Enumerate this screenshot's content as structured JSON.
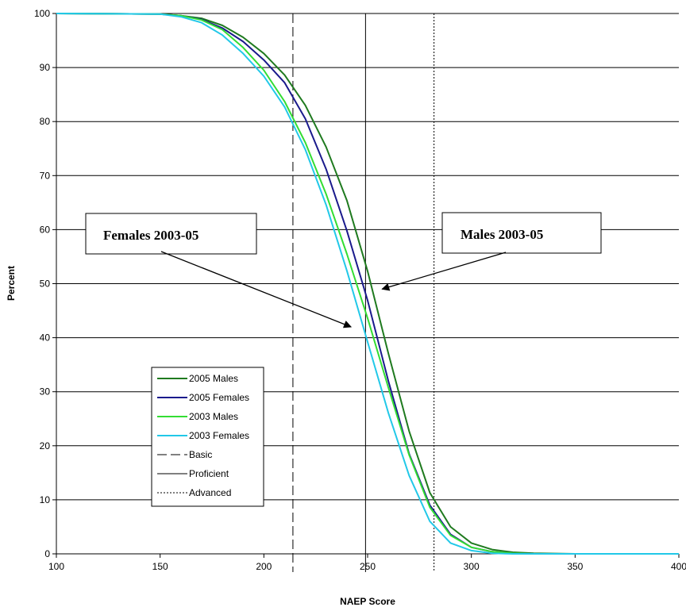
{
  "chart_data": {
    "type": "line",
    "title": "",
    "xlabel": "NAEP Score",
    "ylabel": "Percent",
    "xlim": [
      100,
      400
    ],
    "ylim": [
      0,
      100
    ],
    "x_ticks": [
      100,
      150,
      200,
      250,
      300,
      350,
      400
    ],
    "y_ticks": [
      0,
      10,
      20,
      30,
      40,
      50,
      60,
      70,
      80,
      90,
      100
    ],
    "grid": "horizontal",
    "legend_placement": "bottom-left",
    "series": [
      {
        "name": "2005 Males",
        "color": "#1f7a1f",
        "points": [
          [
            100,
            100
          ],
          [
            150,
            99.9
          ],
          [
            160,
            99.6
          ],
          [
            170,
            99.1
          ],
          [
            180,
            97.8
          ],
          [
            190,
            95.6
          ],
          [
            200,
            92.6
          ],
          [
            210,
            88.6
          ],
          [
            220,
            83
          ],
          [
            230,
            75.3
          ],
          [
            240,
            65.4
          ],
          [
            250,
            52.3
          ],
          [
            260,
            37.1
          ],
          [
            270,
            22.7
          ],
          [
            280,
            11.3
          ],
          [
            290,
            5
          ],
          [
            300,
            2
          ],
          [
            310,
            0.8
          ],
          [
            320,
            0.3
          ],
          [
            330,
            0.1
          ],
          [
            350,
            0
          ],
          [
            400,
            0
          ]
        ]
      },
      {
        "name": "2005 Females",
        "color": "#1a1a8c",
        "points": [
          [
            100,
            100
          ],
          [
            150,
            99.9
          ],
          [
            160,
            99.6
          ],
          [
            170,
            98.9
          ],
          [
            180,
            97.3
          ],
          [
            190,
            94.8
          ],
          [
            200,
            91.4
          ],
          [
            210,
            87.2
          ],
          [
            220,
            80.5
          ],
          [
            230,
            71.2
          ],
          [
            240,
            59.8
          ],
          [
            250,
            46.9
          ],
          [
            260,
            32
          ],
          [
            270,
            18.5
          ],
          [
            280,
            9
          ],
          [
            290,
            3.6
          ],
          [
            300,
            1.2
          ],
          [
            310,
            0.4
          ],
          [
            320,
            0.1
          ],
          [
            330,
            0
          ],
          [
            350,
            0
          ],
          [
            400,
            0
          ]
        ]
      },
      {
        "name": "2003 Males",
        "color": "#33dd33",
        "points": [
          [
            100,
            100
          ],
          [
            150,
            99.9
          ],
          [
            160,
            99.6
          ],
          [
            170,
            98.8
          ],
          [
            180,
            97
          ],
          [
            190,
            93.7
          ],
          [
            200,
            89.5
          ],
          [
            210,
            83.7
          ],
          [
            220,
            76.1
          ],
          [
            230,
            66.6
          ],
          [
            240,
            55.5
          ],
          [
            250,
            43.6
          ],
          [
            260,
            30.8
          ],
          [
            270,
            18.3
          ],
          [
            280,
            8.6
          ],
          [
            290,
            3.4
          ],
          [
            300,
            1.2
          ],
          [
            310,
            0.4
          ],
          [
            320,
            0.1
          ],
          [
            330,
            0
          ],
          [
            350,
            0
          ],
          [
            400,
            0
          ]
        ]
      },
      {
        "name": "2003 Females",
        "color": "#22c8e8",
        "points": [
          [
            100,
            100
          ],
          [
            150,
            99.9
          ],
          [
            160,
            99.4
          ],
          [
            170,
            98.3
          ],
          [
            180,
            96
          ],
          [
            190,
            92.6
          ],
          [
            200,
            88.4
          ],
          [
            210,
            82.7
          ],
          [
            220,
            74.8
          ],
          [
            230,
            64.6
          ],
          [
            240,
            52.4
          ],
          [
            250,
            39.2
          ],
          [
            260,
            26.1
          ],
          [
            270,
            14.5
          ],
          [
            280,
            6
          ],
          [
            290,
            2
          ],
          [
            300,
            0.6
          ],
          [
            310,
            0.1
          ],
          [
            320,
            0
          ],
          [
            350,
            0
          ],
          [
            400,
            0
          ]
        ]
      }
    ],
    "reference_lines": [
      {
        "name": "Basic",
        "x": 214,
        "style": "dashed"
      },
      {
        "name": "Proficient",
        "x": 249,
        "style": "solid"
      },
      {
        "name": "Advanced",
        "x": 282,
        "style": "dotted"
      }
    ],
    "annotations": [
      {
        "text": "Females 2003-05",
        "arrow_to": [
          242,
          42
        ]
      },
      {
        "text": "Males 2003-05",
        "arrow_to": [
          257,
          49
        ]
      }
    ]
  }
}
